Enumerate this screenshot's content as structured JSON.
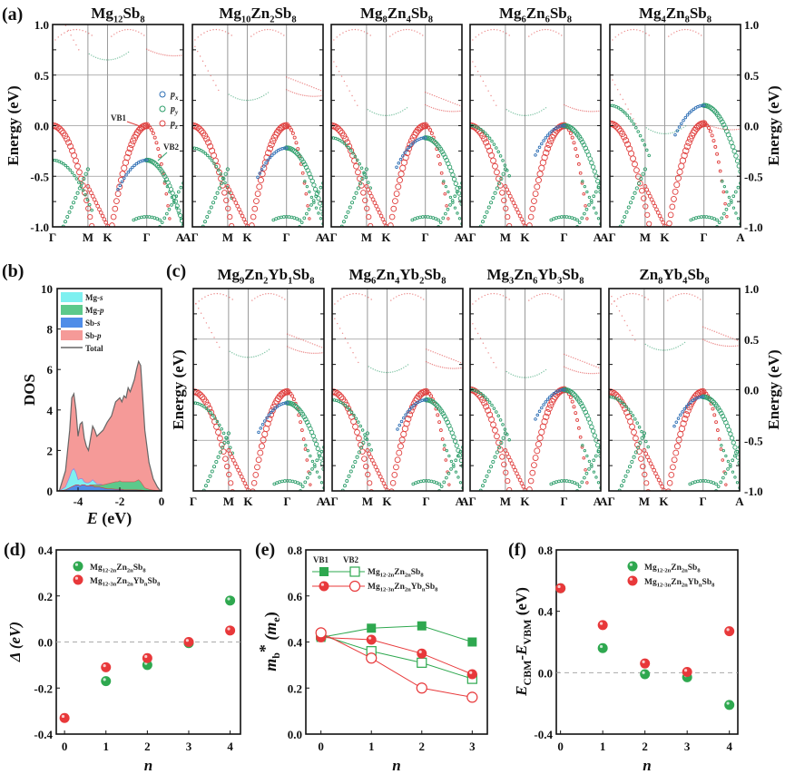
{
  "chart_data": [
    {
      "id": "a",
      "type": "scatter",
      "panel_label": "(a)",
      "description": "Orbital-projected band structures (Sb p_x, p_y, p_z) along Γ-M-K-Γ-A",
      "ylabel": "Energy (eV)",
      "ylim": [
        -1.0,
        1.0
      ],
      "yticks": [
        "-1.0",
        "-0.5",
        "0.0",
        "0.5",
        "1.0"
      ],
      "kpath": [
        "Γ",
        "M",
        "K",
        "Γ",
        "A"
      ],
      "legend": [
        {
          "label": "p_x",
          "color": "#2e6fb5"
        },
        {
          "label": "p_y",
          "color": "#2e9e6b"
        },
        {
          "label": "p_z",
          "color": "#e0403f"
        }
      ],
      "annotations": [
        {
          "text": "VB1",
          "color": "#e0403f"
        },
        {
          "text": "VB2",
          "color": "#2e9e6b"
        }
      ],
      "panels": [
        {
          "title": [
            "Mg",
            "12",
            "Sb",
            "8"
          ],
          "vb1_gamma": 0.0,
          "vb2_gamma": -0.34,
          "cbm": 0.53
        },
        {
          "title": [
            "Mg",
            "10",
            "Zn",
            "2",
            "Sb",
            "8"
          ],
          "vb1_gamma": 0.0,
          "vb2_gamma": -0.22,
          "cbm": 0.13
        },
        {
          "title": [
            "Mg",
            "8",
            "Zn",
            "4",
            "Sb",
            "8"
          ],
          "vb1_gamma": 0.0,
          "vb2_gamma": -0.12,
          "cbm": -0.02
        },
        {
          "title": [
            "Mg",
            "6",
            "Zn",
            "6",
            "Sb",
            "8"
          ],
          "vb1_gamma": 0.0,
          "vb2_gamma": 0.0,
          "cbm": -0.02
        },
        {
          "title": [
            "Mg",
            "4",
            "Zn",
            "8",
            "Sb",
            "8"
          ],
          "vb1_gamma": 0.02,
          "vb2_gamma": 0.2,
          "cbm": -0.2
        }
      ]
    },
    {
      "id": "b",
      "type": "area",
      "panel_label": "(b)",
      "xlabel": "E (eV)",
      "ylabel": "DOS",
      "xlim": [
        -5,
        0
      ],
      "ylim": [
        0,
        10
      ],
      "xticks": [
        "-4",
        "-2",
        "0"
      ],
      "yticks": [
        "0",
        "2",
        "4",
        "6",
        "8",
        "10"
      ],
      "legend": [
        "Mg-s",
        "Mg-p",
        "Sb-s",
        "Sb-p",
        "Total"
      ],
      "colors": {
        "Mg-s": "#7ef0f0",
        "Mg-p": "#5cc98b",
        "Sb-s": "#4f8de8",
        "Sb-p": "#f59a98",
        "Total": "#666666"
      },
      "x": [
        -4.9,
        -4.6,
        -4.4,
        -4.3,
        -4.2,
        -4.1,
        -4.0,
        -3.9,
        -3.8,
        -3.7,
        -3.6,
        -3.5,
        -3.4,
        -3.3,
        -3.2,
        -3.1,
        -3.0,
        -2.8,
        -2.6,
        -2.4,
        -2.2,
        -2.1,
        -2.0,
        -1.9,
        -1.8,
        -1.7,
        -1.6,
        -1.5,
        -1.4,
        -1.3,
        -1.2,
        -1.1,
        -1.0,
        -0.9,
        -0.8,
        -0.6,
        -0.4,
        -0.2,
        -0.05
      ],
      "series": [
        {
          "name": "Total",
          "values": [
            0,
            1.0,
            3.0,
            4.6,
            4.8,
            4.0,
            2.7,
            3.3,
            3.4,
            2.6,
            2.2,
            2.0,
            2.6,
            3.2,
            3.0,
            2.7,
            2.8,
            3.0,
            3.4,
            3.7,
            4.4,
            4.5,
            4.6,
            4.4,
            4.7,
            4.6,
            5.1,
            4.9,
            5.2,
            5.5,
            6.0,
            6.4,
            6.2,
            4.6,
            3.0,
            1.4,
            0.6,
            0.2,
            0
          ]
        },
        {
          "name": "Mg-s",
          "values": [
            0,
            0.2,
            0.7,
            1.0,
            1.1,
            0.9,
            0.55,
            0.6,
            0.6,
            0.45,
            0.4,
            0.4,
            0.45,
            0.55,
            0.45,
            0.35,
            0.35,
            0.3,
            0.25,
            0.25,
            0.2,
            0.2,
            0.2,
            0.2,
            0.2,
            0.2,
            0.2,
            0.2,
            0.15,
            0.15,
            0.15,
            0.15,
            0.15,
            0.1,
            0.05,
            0.03,
            0.02,
            0.01,
            0
          ]
        },
        {
          "name": "Mg-p",
          "values": [
            0,
            0.05,
            0.15,
            0.2,
            0.25,
            0.25,
            0.25,
            0.25,
            0.3,
            0.3,
            0.25,
            0.25,
            0.3,
            0.3,
            0.3,
            0.3,
            0.3,
            0.3,
            0.35,
            0.4,
            0.45,
            0.45,
            0.5,
            0.45,
            0.45,
            0.45,
            0.45,
            0.45,
            0.45,
            0.45,
            0.5,
            0.55,
            0.45,
            0.3,
            0.15,
            0.08,
            0.04,
            0.02,
            0
          ]
        },
        {
          "name": "Sb-s",
          "values": [
            0,
            0.05,
            0.15,
            0.2,
            0.25,
            0.3,
            0.3,
            0.25,
            0.3,
            0.3,
            0.25,
            0.25,
            0.25,
            0.25,
            0.2,
            0.2,
            0.2,
            0.15,
            0.1,
            0.1,
            0.08,
            0.08,
            0.08,
            0.08,
            0.05,
            0.05,
            0.05,
            0.05,
            0.05,
            0.05,
            0.05,
            0.04,
            0.04,
            0.03,
            0.02,
            0.01,
            0.01,
            0,
            0
          ]
        }
      ]
    },
    {
      "id": "c",
      "type": "scatter",
      "panel_label": "(c)",
      "description": "Orbital-projected band structures of Yb co-doped compositions",
      "ylabel": "Energy (eV)",
      "ylim": [
        -1.0,
        1.0
      ],
      "yticks": [
        "-1.0",
        "-0.5",
        "0.0",
        "0.5",
        "1.0"
      ],
      "kpath": [
        "Γ",
        "M",
        "K",
        "Γ",
        "A"
      ],
      "panels": [
        {
          "title": [
            "Mg",
            "9",
            "Zn",
            "2",
            "Yb",
            "1",
            "Sb",
            "8"
          ],
          "vb1_gamma": -0.02,
          "vb2_gamma": -0.13,
          "cbm": 0.2
        },
        {
          "title": [
            "Mg",
            "6",
            "Zn",
            "4",
            "Yb",
            "2",
            "Sb",
            "8"
          ],
          "vb1_gamma": -0.02,
          "vb2_gamma": -0.1,
          "cbm": 0.05
        },
        {
          "title": [
            "Mg",
            "3",
            "Zn",
            "6",
            "Yb",
            "3",
            "Sb",
            "8"
          ],
          "vb1_gamma": 0.0,
          "vb2_gamma": 0.0,
          "cbm": 0.0
        },
        {
          "title": [
            "Zn",
            "8",
            "Yb",
            "4",
            "Sb",
            "8"
          ],
          "vb1_gamma": -0.02,
          "vb2_gamma": -0.07,
          "cbm": 0.27
        }
      ]
    },
    {
      "id": "d",
      "type": "scatter",
      "panel_label": "(d)",
      "xlabel": "n",
      "ylabel": "Δ (eV)",
      "xlim": [
        -0.2,
        4.25
      ],
      "ylim": [
        -0.4,
        0.4
      ],
      "xticks": [
        "0",
        "1",
        "2",
        "3",
        "4"
      ],
      "yticks": [
        "-0.4",
        "-0.2",
        "0.0",
        "0.2",
        "0.4"
      ],
      "legend_position": "top-left",
      "series": [
        {
          "name": "Mg12-2nZn2nSb8",
          "color": "#2ea84f",
          "x": [
            1,
            2,
            3,
            4
          ],
          "values": [
            -0.17,
            -0.1,
            -0.005,
            0.18
          ]
        },
        {
          "name": "Mg12-3nZn2nYbnSb8",
          "color": "#e8383a",
          "x": [
            0,
            1,
            2,
            3,
            4
          ],
          "values": [
            -0.33,
            -0.11,
            -0.07,
            0.0,
            0.05
          ]
        }
      ]
    },
    {
      "id": "e",
      "type": "line",
      "panel_label": "(e)",
      "xlabel": "n",
      "ylabel": "m_b* (m_e)",
      "xlim": [
        -0.3,
        3.3
      ],
      "ylim": [
        0,
        0.8
      ],
      "xticks": [
        "0",
        "1",
        "2",
        "3"
      ],
      "yticks": [
        "0.0",
        "0.2",
        "0.4",
        "0.6",
        "0.8"
      ],
      "legend_position": "top-left",
      "legend_headers": [
        "VB1",
        "VB2"
      ],
      "series": [
        {
          "name": "Mg12-2nZn2nSb8 VB1",
          "color": "#2ea84f",
          "marker": "square-filled",
          "x": [
            0,
            1,
            2,
            3
          ],
          "values": [
            0.42,
            0.46,
            0.47,
            0.4
          ]
        },
        {
          "name": "Mg12-2nZn2nSb8 VB2",
          "color": "#2ea84f",
          "marker": "square-open",
          "x": [
            0,
            1,
            2,
            3
          ],
          "values": [
            0.43,
            0.36,
            0.31,
            0.24
          ]
        },
        {
          "name": "Mg12-3nZn2nYbnSb8 VB1",
          "color": "#e8383a",
          "marker": "circle-filled",
          "x": [
            0,
            1,
            2,
            3
          ],
          "values": [
            0.42,
            0.41,
            0.35,
            0.26
          ]
        },
        {
          "name": "Mg12-3nZn2nYbnSb8 VB2",
          "color": "#e8383a",
          "marker": "circle-open",
          "x": [
            0,
            1,
            2,
            3
          ],
          "values": [
            0.44,
            0.33,
            0.2,
            0.16
          ]
        }
      ]
    },
    {
      "id": "f",
      "type": "scatter",
      "panel_label": "(f)",
      "xlabel": "n",
      "ylabel": "E_CBM-E_VBM (eV)",
      "xlim": [
        -0.1,
        4.2
      ],
      "ylim": [
        -0.4,
        0.8
      ],
      "xticks": [
        "0",
        "1",
        "2",
        "3",
        "4"
      ],
      "yticks": [
        "-0.4",
        "0.0",
        "0.4",
        "0.8"
      ],
      "legend_position": "top-right",
      "series": [
        {
          "name": "Mg12-2nZn2nSb8",
          "color": "#2ea84f",
          "x": [
            0,
            1,
            2,
            3,
            4
          ],
          "values": [
            0.55,
            0.16,
            -0.01,
            -0.03,
            -0.21
          ]
        },
        {
          "name": "Mg12-3nZn2nYbnSb8",
          "color": "#e8383a",
          "x": [
            0,
            1,
            2,
            3,
            4
          ],
          "values": [
            0.55,
            0.31,
            0.06,
            0.005,
            0.27
          ]
        }
      ]
    }
  ],
  "labels": {
    "a": "(a)",
    "b": "(b)",
    "c": "(c)",
    "d": "(d)",
    "e": "(e)",
    "f": "(f)",
    "energy_axis": "Energy (eV)",
    "dos_axis": "DOS",
    "dos_x_axis_E": "E",
    "dos_x_axis_unit": " (eV)",
    "n_axis": "n",
    "vb1": "VB1",
    "vb2": "VB2",
    "px": "p",
    "px_sub": "x",
    "py_sub": "y",
    "pz_sub": "z",
    "delta_axis": "Δ (eV)",
    "mb_axis_m": "m",
    "mb_axis_sub": "b",
    "mb_axis_star": "*",
    "mb_axis_me": " (m",
    "mb_axis_me_sub": "e",
    "mb_axis_close": ")",
    "f_axis_E": "E",
    "f_axis_cbm": "CBM",
    "f_axis_dash": "-E",
    "f_axis_vbm": "VBM",
    "f_axis_unit": " (eV)",
    "legend_green_main": "Mg",
    "legend_green_sub1": "12-2n",
    "legend_green_zn": "Zn",
    "legend_green_sub2": "2n",
    "legend_green_sb": "Sb",
    "legend_green_sub3": "8",
    "legend_red_sub1": "12-3n",
    "legend_red_yb": "Yb",
    "legend_red_subn": "n"
  }
}
